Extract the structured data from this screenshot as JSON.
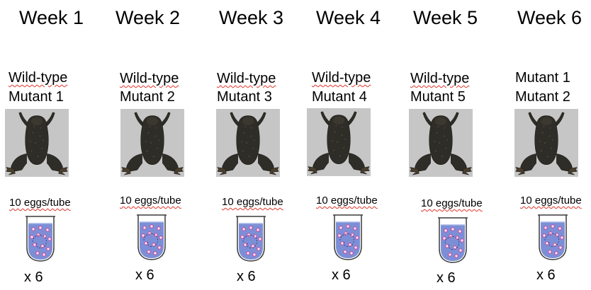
{
  "columns": [
    {
      "week": "Week 1",
      "strains": [
        {
          "text": "Wild-type",
          "flagged": true
        },
        {
          "text": "Mutant 1",
          "flagged": false
        }
      ],
      "eggs_label": "10 eggs/tube",
      "count": "x 6"
    },
    {
      "week": "Week 2",
      "strains": [
        {
          "text": "Wild-type",
          "flagged": true
        },
        {
          "text": "Mutant 2",
          "flagged": false
        }
      ],
      "eggs_label": "10 eggs/tube",
      "count": "x 6"
    },
    {
      "week": "Week 3",
      "strains": [
        {
          "text": "Wild-type",
          "flagged": true
        },
        {
          "text": "Mutant 3",
          "flagged": false
        }
      ],
      "eggs_label": "10 eggs/tube",
      "count": "x 6"
    },
    {
      "week": "Week 4",
      "strains": [
        {
          "text": "Wild-type",
          "flagged": true
        },
        {
          "text": "Mutant 4",
          "flagged": false
        }
      ],
      "eggs_label": "10 eggs/tube",
      "count": "x 6"
    },
    {
      "week": "Week 5",
      "strains": [
        {
          "text": "Wild-type",
          "flagged": true
        },
        {
          "text": "Mutant 5",
          "flagged": false
        }
      ],
      "eggs_label": "10 eggs/tube",
      "count": "x 6"
    },
    {
      "week": "Week 6",
      "strains": [
        {
          "text": "Mutant 1",
          "flagged": false
        },
        {
          "text": "Mutant 2",
          "flagged": false
        }
      ],
      "eggs_label": "10 eggs/tube",
      "count": "x 6"
    }
  ],
  "colors": {
    "background": "#ffffff",
    "frog_backdrop": "#c6c6c6",
    "frog_skin": "#2f2d27",
    "tube_liquid": "#7c8fd6",
    "egg_fill": "#ffe6f2",
    "egg_outline": "#cc3f9e",
    "spellcheck_underline": "#e0342c"
  },
  "icons": {
    "frog": "frog-photo-icon",
    "tube": "test-tube-with-eggs-icon"
  }
}
